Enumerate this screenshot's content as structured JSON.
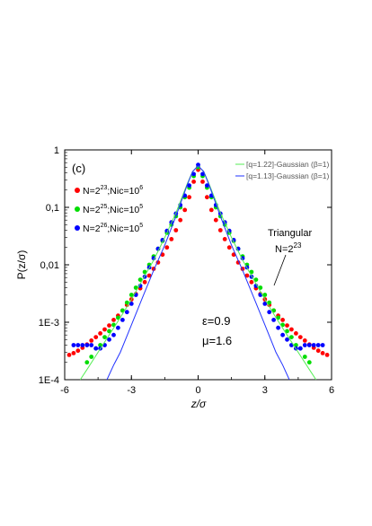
{
  "chart_data": {
    "type": "scatter",
    "panel_label": "(c)",
    "xlabel": "z/σ",
    "ylabel": "P(z/σ)",
    "xlim": [
      -6,
      6
    ],
    "ylim": [
      0.0001,
      1
    ],
    "yscale": "log",
    "x_ticks": [
      -6,
      -3,
      0,
      3,
      6
    ],
    "x_tick_labels": [
      "-6",
      "-3",
      "0",
      "3",
      "6"
    ],
    "y_ticks": [
      0.0001,
      0.001,
      0.01,
      0.1,
      1
    ],
    "y_tick_labels": [
      "1E-4",
      "1E-3",
      "0,01",
      "0,1",
      "1"
    ],
    "grid": false,
    "legend_position": "top",
    "series": [
      {
        "name_main": "N=2",
        "name_exp1": "23",
        "name_mid": ";Nic=10",
        "name_exp2": "6",
        "color": "#ff0000",
        "kind": "markers",
        "points": [
          [
            -5.8,
            0.00027
          ],
          [
            -5.6,
            0.00029
          ],
          [
            -5.4,
            0.00032
          ],
          [
            -5.2,
            0.00036
          ],
          [
            -5.0,
            0.00041
          ],
          [
            -4.8,
            0.00048
          ],
          [
            -4.6,
            0.00055
          ],
          [
            -4.4,
            0.00064
          ],
          [
            -4.2,
            0.00075
          ],
          [
            -4.0,
            0.00088
          ],
          [
            -3.8,
            0.0011
          ],
          [
            -3.6,
            0.0013
          ],
          [
            -3.4,
            0.0016
          ],
          [
            -3.2,
            0.002
          ],
          [
            -3.0,
            0.0025
          ],
          [
            -2.8,
            0.0031
          ],
          [
            -2.6,
            0.0039
          ],
          [
            -2.4,
            0.005
          ],
          [
            -2.2,
            0.0065
          ],
          [
            -2.0,
            0.0085
          ],
          [
            -1.8,
            0.011
          ],
          [
            -1.6,
            0.015
          ],
          [
            -1.4,
            0.02
          ],
          [
            -1.2,
            0.028
          ],
          [
            -1.0,
            0.04
          ],
          [
            -0.8,
            0.06
          ],
          [
            -0.6,
            0.09
          ],
          [
            -0.4,
            0.15
          ],
          [
            -0.2,
            0.28
          ],
          [
            0,
            0.45
          ],
          [
            0.2,
            0.28
          ],
          [
            0.4,
            0.15
          ],
          [
            0.6,
            0.09
          ],
          [
            0.8,
            0.06
          ],
          [
            1.0,
            0.04
          ],
          [
            1.2,
            0.028
          ],
          [
            1.4,
            0.02
          ],
          [
            1.6,
            0.015
          ],
          [
            1.8,
            0.011
          ],
          [
            2.0,
            0.0085
          ],
          [
            2.2,
            0.0065
          ],
          [
            2.4,
            0.005
          ],
          [
            2.6,
            0.0039
          ],
          [
            2.8,
            0.0031
          ],
          [
            3.0,
            0.0025
          ],
          [
            3.2,
            0.002
          ],
          [
            3.4,
            0.0016
          ],
          [
            3.6,
            0.0013
          ],
          [
            3.8,
            0.0011
          ],
          [
            4.0,
            0.00088
          ],
          [
            4.2,
            0.00075
          ],
          [
            4.4,
            0.00064
          ],
          [
            4.6,
            0.00055
          ],
          [
            4.8,
            0.00048
          ],
          [
            5.0,
            0.00041
          ],
          [
            5.2,
            0.00036
          ],
          [
            5.4,
            0.00032
          ],
          [
            5.6,
            0.00029
          ],
          [
            5.8,
            0.00027
          ]
        ]
      },
      {
        "name_main": "N=2",
        "name_exp1": "25",
        "name_mid": ";Nic=10",
        "name_exp2": "5",
        "color": "#00dd00",
        "kind": "markers",
        "points": [
          [
            -5.0,
            0.0002
          ],
          [
            -4.8,
            0.00025
          ],
          [
            -4.6,
            0.00035
          ],
          [
            -4.4,
            0.0004
          ],
          [
            -4.2,
            0.00055
          ],
          [
            -4.0,
            0.0007
          ],
          [
            -3.8,
            0.0009
          ],
          [
            -3.6,
            0.0012
          ],
          [
            -3.4,
            0.0016
          ],
          [
            -3.2,
            0.0022
          ],
          [
            -3.0,
            0.003
          ],
          [
            -2.8,
            0.004
          ],
          [
            -2.6,
            0.0055
          ],
          [
            -2.4,
            0.0075
          ],
          [
            -2.2,
            0.01
          ],
          [
            -2.0,
            0.014
          ],
          [
            -1.8,
            0.019
          ],
          [
            -1.6,
            0.026
          ],
          [
            -1.4,
            0.036
          ],
          [
            -1.2,
            0.05
          ],
          [
            -1.0,
            0.07
          ],
          [
            -0.8,
            0.1
          ],
          [
            -0.6,
            0.15
          ],
          [
            -0.4,
            0.22
          ],
          [
            -0.2,
            0.35
          ],
          [
            0,
            0.5
          ],
          [
            0.2,
            0.35
          ],
          [
            0.4,
            0.22
          ],
          [
            0.6,
            0.15
          ],
          [
            0.8,
            0.1
          ],
          [
            1.0,
            0.07
          ],
          [
            1.2,
            0.05
          ],
          [
            1.4,
            0.036
          ],
          [
            1.6,
            0.026
          ],
          [
            1.8,
            0.019
          ],
          [
            2.0,
            0.014
          ],
          [
            2.2,
            0.01
          ],
          [
            2.4,
            0.0075
          ],
          [
            2.6,
            0.0055
          ],
          [
            2.8,
            0.004
          ],
          [
            3.0,
            0.003
          ],
          [
            3.2,
            0.0022
          ],
          [
            3.4,
            0.0016
          ],
          [
            3.6,
            0.0012
          ],
          [
            3.8,
            0.0009
          ],
          [
            4.0,
            0.0007
          ],
          [
            4.2,
            0.00055
          ],
          [
            4.4,
            0.0004
          ],
          [
            4.6,
            0.00035
          ],
          [
            4.8,
            0.00025
          ],
          [
            5.0,
            0.0002
          ]
        ]
      },
      {
        "name_main": "N=2",
        "name_exp1": "26",
        "name_mid": ";Nic=10",
        "name_exp2": "5",
        "color": "#0000ff",
        "kind": "markers",
        "points": [
          [
            -5.6,
            0.0004
          ],
          [
            -5.4,
            0.0004
          ],
          [
            -5.2,
            0.0004
          ],
          [
            -5.0,
            0.0004
          ],
          [
            -4.8,
            0.0004
          ],
          [
            -4.6,
            0.00035
          ],
          [
            -4.4,
            0.00035
          ],
          [
            -4.2,
            0.0004
          ],
          [
            -4.0,
            0.0005
          ],
          [
            -3.8,
            0.0006
          ],
          [
            -3.6,
            0.0008
          ],
          [
            -3.4,
            0.0011
          ],
          [
            -3.2,
            0.0015
          ],
          [
            -3.0,
            0.0021
          ],
          [
            -2.8,
            0.003
          ],
          [
            -2.6,
            0.0043
          ],
          [
            -2.4,
            0.0062
          ],
          [
            -2.2,
            0.009
          ],
          [
            -2.0,
            0.013
          ],
          [
            -1.8,
            0.019
          ],
          [
            -1.6,
            0.027
          ],
          [
            -1.4,
            0.039
          ],
          [
            -1.2,
            0.055
          ],
          [
            -1.0,
            0.078
          ],
          [
            -0.8,
            0.11
          ],
          [
            -0.6,
            0.16
          ],
          [
            -0.4,
            0.24
          ],
          [
            -0.2,
            0.38
          ],
          [
            0,
            0.55
          ],
          [
            0.2,
            0.38
          ],
          [
            0.4,
            0.24
          ],
          [
            0.6,
            0.16
          ],
          [
            0.8,
            0.11
          ],
          [
            1.0,
            0.078
          ],
          [
            1.2,
            0.055
          ],
          [
            1.4,
            0.039
          ],
          [
            1.6,
            0.027
          ],
          [
            1.8,
            0.019
          ],
          [
            2.0,
            0.013
          ],
          [
            2.2,
            0.009
          ],
          [
            2.4,
            0.0062
          ],
          [
            2.6,
            0.0043
          ],
          [
            2.8,
            0.003
          ],
          [
            3.0,
            0.0021
          ],
          [
            3.2,
            0.0015
          ],
          [
            3.4,
            0.0011
          ],
          [
            3.6,
            0.0008
          ],
          [
            3.8,
            0.0006
          ],
          [
            4.0,
            0.0005
          ],
          [
            4.2,
            0.0004
          ],
          [
            4.4,
            0.00035
          ],
          [
            4.6,
            0.00035
          ],
          [
            4.8,
            0.0004
          ],
          [
            5.0,
            0.0004
          ],
          [
            5.2,
            0.0004
          ],
          [
            5.4,
            0.0004
          ],
          [
            5.6,
            0.0004
          ]
        ]
      },
      {
        "name": "[q=1.22]-Gaussian (β=1)",
        "color": "#55ee55",
        "kind": "line",
        "points": [
          [
            -5.3,
            0.0001
          ],
          [
            -5.0,
            0.00015
          ],
          [
            -4.5,
            0.0003
          ],
          [
            -4.0,
            0.0006
          ],
          [
            -3.5,
            0.0012
          ],
          [
            -3.0,
            0.0025
          ],
          [
            -2.5,
            0.0055
          ],
          [
            -2.0,
            0.012
          ],
          [
            -1.5,
            0.03
          ],
          [
            -1.0,
            0.08
          ],
          [
            -0.5,
            0.25
          ],
          [
            -0.25,
            0.42
          ],
          [
            0,
            0.52
          ],
          [
            0.25,
            0.42
          ],
          [
            0.5,
            0.25
          ],
          [
            1.0,
            0.08
          ],
          [
            1.5,
            0.03
          ],
          [
            2.0,
            0.012
          ],
          [
            2.5,
            0.0055
          ],
          [
            3.0,
            0.0025
          ],
          [
            3.5,
            0.0012
          ],
          [
            4.0,
            0.0006
          ],
          [
            4.5,
            0.0003
          ],
          [
            5.0,
            0.00015
          ],
          [
            5.3,
            0.0001
          ]
        ]
      },
      {
        "name": "[q=1.13]-Gaussian (β=1)",
        "color": "#2233ff",
        "kind": "line",
        "points": [
          [
            -4.1,
            0.0001
          ],
          [
            -3.8,
            0.00018
          ],
          [
            -3.5,
            0.0003
          ],
          [
            -3.0,
            0.0009
          ],
          [
            -2.5,
            0.0027
          ],
          [
            -2.0,
            0.008
          ],
          [
            -1.5,
            0.022
          ],
          [
            -1.0,
            0.07
          ],
          [
            -0.5,
            0.24
          ],
          [
            -0.25,
            0.42
          ],
          [
            0,
            0.53
          ],
          [
            0.25,
            0.42
          ],
          [
            0.5,
            0.24
          ],
          [
            1.0,
            0.07
          ],
          [
            1.5,
            0.022
          ],
          [
            2.0,
            0.008
          ],
          [
            2.5,
            0.0027
          ],
          [
            3.0,
            0.0009
          ],
          [
            3.5,
            0.0003
          ],
          [
            3.8,
            0.00018
          ],
          [
            4.1,
            0.0001
          ]
        ]
      }
    ],
    "annotations": {
      "triangular_label": "Triangular",
      "triangular_n_main": "N=2",
      "triangular_n_exp": "23",
      "epsilon_text": "ε=0.9",
      "mu_text": "μ=1.6"
    }
  }
}
